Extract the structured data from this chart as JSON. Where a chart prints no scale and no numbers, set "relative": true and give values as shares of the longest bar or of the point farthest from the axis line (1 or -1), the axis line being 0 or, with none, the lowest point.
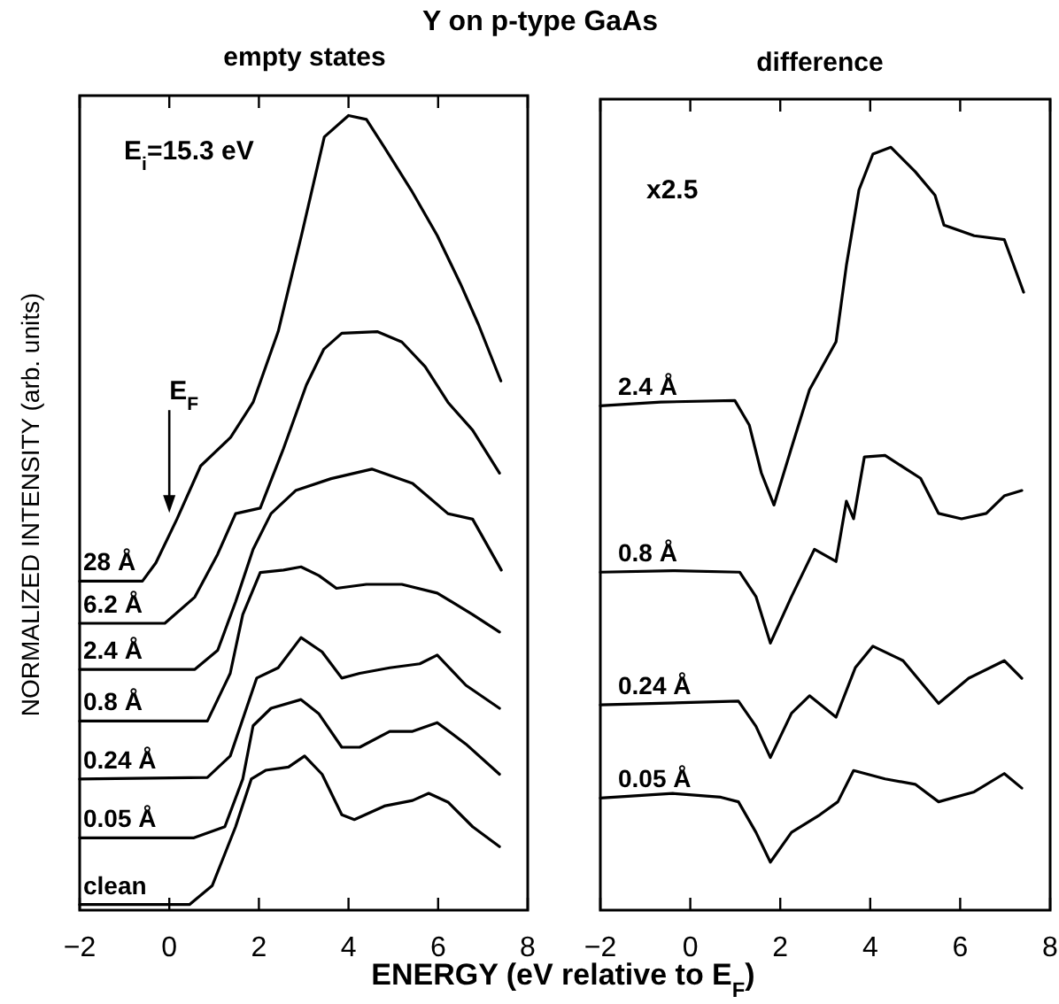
{
  "chart_data": [
    {
      "type": "line",
      "title": "Y on p-type GaAs",
      "subtitle": "empty states",
      "xlabel": "ENERGY (eV relative to E$_{F}$)",
      "ylabel": "NORMALIZED INTENSITY (arb. units)",
      "relative": true,
      "xlim": [
        -2,
        8
      ],
      "xticks": [
        -2,
        0,
        2,
        4,
        6,
        8
      ],
      "annotations": [
        "E$_{i}$=15.3 eV",
        {
          "text": "E$_{F}$",
          "x": 0,
          "y": 0.5
        }
      ],
      "series": [
        {
          "name": "28 Å",
          "color": "#000000",
          "x": [
            -2,
            -0.6,
            -0.3,
            0.17,
            0.7,
            1.37,
            1.87,
            2.43,
            2.95,
            3.46,
            4.0,
            4.4,
            4.8,
            5.4,
            5.98,
            6.5,
            6.9,
            7.4
          ],
          "values": [
            0.414,
            0.414,
            0.437,
            0.492,
            0.559,
            0.595,
            0.639,
            0.728,
            0.849,
            0.973,
            1.0,
            0.995,
            0.96,
            0.906,
            0.849,
            0.788,
            0.737,
            0.666
          ]
        },
        {
          "name": "6.2 Å",
          "color": "#000000",
          "x": [
            -2,
            -0.1,
            0.57,
            1.08,
            1.48,
            2.03,
            2.55,
            3.06,
            3.45,
            3.85,
            4.64,
            5.19,
            5.71,
            6.22,
            6.77,
            7.37
          ],
          "values": [
            0.361,
            0.361,
            0.394,
            0.448,
            0.499,
            0.506,
            0.581,
            0.661,
            0.706,
            0.726,
            0.728,
            0.715,
            0.684,
            0.639,
            0.604,
            0.55
          ]
        },
        {
          "name": "2.4 Å",
          "color": "#000000",
          "x": [
            -2,
            0.57,
            1.08,
            1.48,
            1.87,
            2.27,
            2.82,
            3.61,
            4.52,
            5.43,
            6.22,
            6.77,
            7.41
          ],
          "values": [
            0.303,
            0.303,
            0.327,
            0.388,
            0.454,
            0.499,
            0.528,
            0.543,
            0.555,
            0.537,
            0.499,
            0.492,
            0.428
          ]
        },
        {
          "name": "0.8 Å",
          "color": "#000000",
          "x": [
            -2,
            0.85,
            1.36,
            1.64,
            2.03,
            2.55,
            2.94,
            3.34,
            3.73,
            4.4,
            5.19,
            5.98,
            6.77,
            7.37
          ],
          "values": [
            0.238,
            0.238,
            0.298,
            0.372,
            0.425,
            0.428,
            0.432,
            0.421,
            0.405,
            0.41,
            0.41,
            0.399,
            0.372,
            0.35
          ]
        },
        {
          "name": "0.24 Å",
          "color": "#000000",
          "x": [
            -2,
            0.85,
            1.36,
            1.68,
            1.95,
            2.43,
            2.94,
            3.41,
            3.85,
            4.25,
            4.92,
            5.59,
            5.98,
            6.62,
            7.37
          ],
          "values": [
            0.165,
            0.167,
            0.194,
            0.247,
            0.292,
            0.305,
            0.343,
            0.325,
            0.292,
            0.298,
            0.305,
            0.31,
            0.321,
            0.283,
            0.254
          ]
        },
        {
          "name": "0.05 Å",
          "color": "#000000",
          "x": [
            -2,
            0.55,
            1.24,
            1.64,
            1.87,
            2.27,
            2.94,
            3.34,
            3.85,
            4.25,
            4.92,
            5.43,
            5.98,
            6.62,
            7.37
          ],
          "values": [
            0.091,
            0.091,
            0.105,
            0.165,
            0.232,
            0.254,
            0.265,
            0.247,
            0.205,
            0.205,
            0.225,
            0.225,
            0.236,
            0.209,
            0.171
          ]
        },
        {
          "name": "clean",
          "color": "#000000",
          "x": [
            -2,
            0.45,
            0.96,
            1.48,
            1.83,
            2.15,
            2.66,
            3.02,
            3.41,
            3.85,
            4.13,
            4.8,
            5.43,
            5.79,
            6.22,
            6.77,
            7.37
          ],
          "values": [
            0.007,
            0.007,
            0.031,
            0.105,
            0.165,
            0.176,
            0.18,
            0.194,
            0.171,
            0.12,
            0.114,
            0.131,
            0.138,
            0.147,
            0.136,
            0.105,
            0.08
          ]
        }
      ]
    },
    {
      "type": "line",
      "subtitle": "difference",
      "relative": true,
      "xlim": [
        -2,
        8
      ],
      "xticks": [
        -2,
        0,
        2,
        4,
        6,
        8
      ],
      "annotations": [
        "x2.5"
      ],
      "series": [
        {
          "name": "2.4 Å",
          "color": "#000000",
          "x": [
            -2,
            -0.66,
            0.99,
            1.31,
            1.58,
            1.86,
            2.25,
            2.65,
            3.24,
            3.47,
            3.75,
            4.06,
            4.46,
            5.0,
            5.44,
            5.64,
            6.31,
            6.98,
            7.41
          ],
          "values": [
            0.661,
            0.666,
            0.668,
            0.636,
            0.573,
            0.531,
            0.606,
            0.682,
            0.745,
            0.845,
            0.944,
            0.991,
            1.0,
            0.968,
            0.937,
            0.898,
            0.884,
            0.879,
            0.81
          ]
        },
        {
          "name": "0.8 Å",
          "color": "#000000",
          "x": [
            -2,
            -0.39,
            1.1,
            1.46,
            1.78,
            2.25,
            2.76,
            3.24,
            3.47,
            3.63,
            3.87,
            4.33,
            5.12,
            5.52,
            6.03,
            6.58,
            6.98,
            7.37
          ],
          "values": [
            0.443,
            0.445,
            0.443,
            0.411,
            0.35,
            0.411,
            0.473,
            0.457,
            0.536,
            0.513,
            0.594,
            0.596,
            0.566,
            0.52,
            0.513,
            0.52,
            0.543,
            0.55
          ]
        },
        {
          "name": "0.24 Å",
          "color": "#000000",
          "x": [
            -2,
            1.07,
            1.46,
            1.78,
            2.25,
            2.65,
            3.24,
            3.67,
            4.06,
            4.73,
            5.52,
            6.19,
            6.98,
            7.37
          ],
          "values": [
            0.269,
            0.274,
            0.241,
            0.2,
            0.258,
            0.281,
            0.253,
            0.318,
            0.346,
            0.327,
            0.271,
            0.304,
            0.327,
            0.304
          ]
        },
        {
          "name": "0.05 Å",
          "color": "#000000",
          "x": [
            -2,
            -0.39,
            0.68,
            1.07,
            1.46,
            1.78,
            2.25,
            2.88,
            3.28,
            3.63,
            4.33,
            5.0,
            5.52,
            6.31,
            6.98,
            7.37
          ],
          "values": [
            0.147,
            0.153,
            0.148,
            0.142,
            0.102,
            0.063,
            0.102,
            0.125,
            0.142,
            0.183,
            0.172,
            0.165,
            0.142,
            0.155,
            0.179,
            0.16
          ]
        }
      ]
    }
  ]
}
